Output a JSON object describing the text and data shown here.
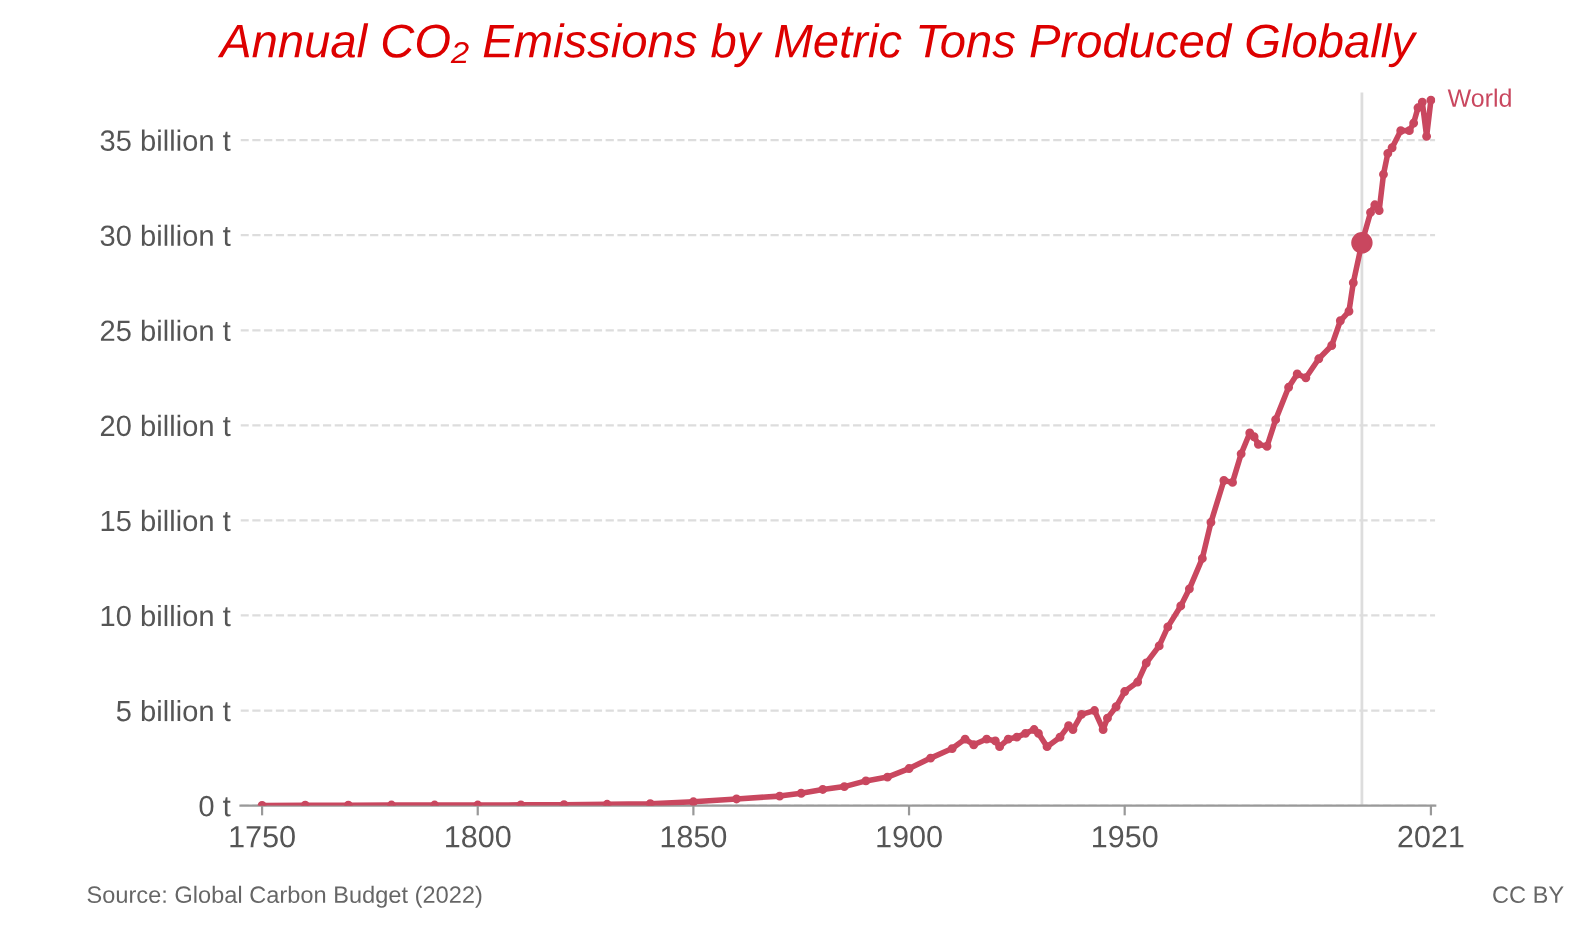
{
  "chart_data": {
    "type": "line",
    "title": "Annual CO₂ Emissions by Metric Tons Produced Globally",
    "annotations": [
      "Source: Global Carbon Budget (2022)",
      "CC BY"
    ],
    "xlim": [
      1745,
      2022
    ],
    "xticks": [
      1750,
      1800,
      1850,
      1900,
      1950,
      2021
    ],
    "ylim": [
      0,
      37.5
    ],
    "yticks": [
      {
        "value": 0,
        "label": "0 t"
      },
      {
        "value": 5,
        "label": "5 billion t"
      },
      {
        "value": 10,
        "label": "10 billion t"
      },
      {
        "value": 15,
        "label": "15 billion t"
      },
      {
        "value": 20,
        "label": "20 billion t"
      },
      {
        "value": 25,
        "label": "25 billion t"
      },
      {
        "value": 30,
        "label": "30 billion t"
      },
      {
        "value": 35,
        "label": "35 billion t"
      }
    ],
    "grid": "y",
    "legend": false,
    "marker": "circle",
    "line_style": "solid",
    "ref_lines": [
      {
        "axis": "x",
        "value": 2005,
        "color": "#dddddd"
      }
    ],
    "series": [
      {
        "name": "World",
        "color": "#c9475f",
        "x": [
          1750,
          1760,
          1770,
          1780,
          1790,
          1800,
          1810,
          1820,
          1830,
          1840,
          1850,
          1860,
          1870,
          1875,
          1880,
          1885,
          1890,
          1895,
          1900,
          1905,
          1910,
          1913,
          1915,
          1918,
          1920,
          1921,
          1923,
          1925,
          1927,
          1929,
          1930,
          1932,
          1935,
          1937,
          1938,
          1940,
          1943,
          1945,
          1946,
          1948,
          1950,
          1953,
          1955,
          1958,
          1960,
          1963,
          1965,
          1968,
          1970,
          1973,
          1975,
          1977,
          1979,
          1980,
          1981,
          1983,
          1985,
          1988,
          1990,
          1992,
          1995,
          1998,
          2000,
          2002,
          2003,
          2005,
          2007,
          2008,
          2009,
          2010,
          2011,
          2012,
          2014,
          2016,
          2017,
          2018,
          2019,
          2020,
          2021
        ],
        "values": [
          0.01,
          0.02,
          0.02,
          0.03,
          0.03,
          0.03,
          0.04,
          0.05,
          0.07,
          0.1,
          0.2,
          0.35,
          0.5,
          0.65,
          0.85,
          1.0,
          1.3,
          1.5,
          1.95,
          2.5,
          3.0,
          3.5,
          3.2,
          3.5,
          3.4,
          3.1,
          3.5,
          3.6,
          3.8,
          4.0,
          3.8,
          3.1,
          3.6,
          4.2,
          4.0,
          4.8,
          5.0,
          4.0,
          4.6,
          5.2,
          6.0,
          6.5,
          7.5,
          8.4,
          9.4,
          10.5,
          11.4,
          13.0,
          14.9,
          17.1,
          17.0,
          18.5,
          19.6,
          19.4,
          19.0,
          18.9,
          20.3,
          22.0,
          22.7,
          22.5,
          23.5,
          24.2,
          25.5,
          26.0,
          27.5,
          29.6,
          31.2,
          31.6,
          31.3,
          33.2,
          34.3,
          34.6,
          35.5,
          35.5,
          35.9,
          36.7,
          37.0,
          35.2,
          37.1
        ]
      },
      {
        "type": "scatter",
        "color": "#c9475f",
        "x": [
          2005
        ],
        "values": [
          29.6
        ]
      }
    ]
  }
}
